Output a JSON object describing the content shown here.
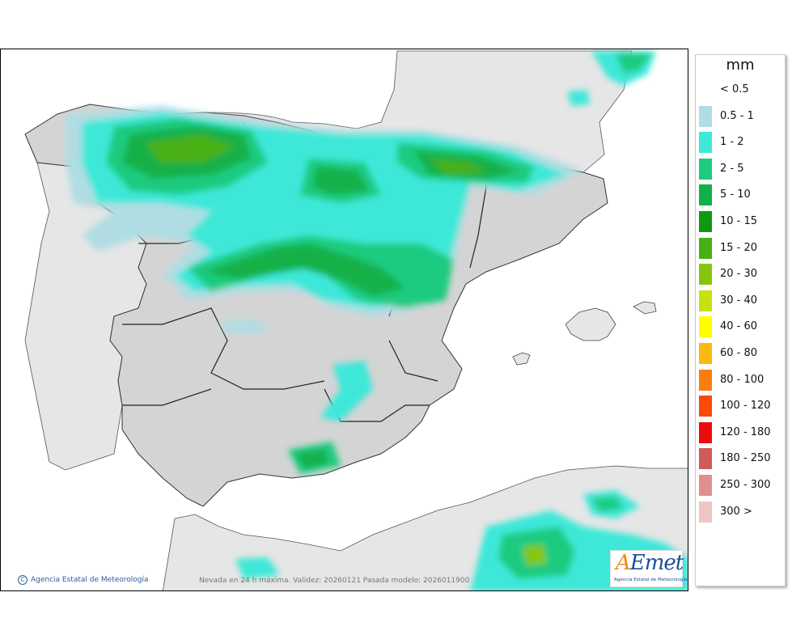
{
  "map": {
    "credit": "Agencia Estatal de Meteorología",
    "caption": "Nevada en 24 h máxima. Validez: 20260121 Pasada modelo: 2026011900",
    "logo": {
      "text_a": "A",
      "text_rest": "Emet",
      "subtitle": "Agencia Estatal de Meteorología"
    }
  },
  "legend": {
    "unit": "mm",
    "items": [
      {
        "label": "< 0.5",
        "color": ""
      },
      {
        "label": "0.5 - 1",
        "color": "#b0dde3"
      },
      {
        "label": "1 - 2",
        "color": "#3ee8d8"
      },
      {
        "label": "2 - 5",
        "color": "#1ecb7f"
      },
      {
        "label": "5 - 10",
        "color": "#12b04a"
      },
      {
        "label": "10 - 15",
        "color": "#0c9a10"
      },
      {
        "label": "15 - 20",
        "color": "#48b014"
      },
      {
        "label": "20 - 30",
        "color": "#86c60a"
      },
      {
        "label": "30 - 40",
        "color": "#c6e010"
      },
      {
        "label": "40 - 60",
        "color": "#fefe00"
      },
      {
        "label": "60 - 80",
        "color": "#fdb913"
      },
      {
        "label": "80 - 100",
        "color": "#fb7d0f"
      },
      {
        "label": "100 - 120",
        "color": "#f94a0a"
      },
      {
        "label": "120 - 180",
        "color": "#ed0c0c"
      },
      {
        "label": "180 - 250",
        "color": "#cf5b5b"
      },
      {
        "label": "250 - 300",
        "color": "#de8f8f"
      },
      {
        "label": "300 >",
        "color": "#eec6c6"
      }
    ]
  }
}
